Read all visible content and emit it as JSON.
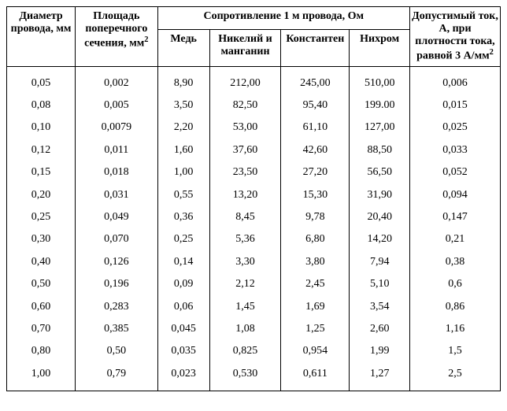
{
  "headers": {
    "col1": "Диаметр провода, мм",
    "col2_line1": "Площадь поперечного сечения, мм",
    "col2_sup": "2",
    "group": "Сопротивление 1 м провода, Ом",
    "sub1": "Медь",
    "sub2": "Никелий и манганин",
    "sub3": "Константен",
    "sub4": "Нихром",
    "col7_line1": "Допустимый ток, А, при плотности тока, равной 3 А/мм",
    "col7_sup": "2"
  },
  "rows": [
    {
      "d": "0,05",
      "s": "0,002",
      "cu": "8,90",
      "ni": "212,00",
      "ko": "245,00",
      "nh": "510,00",
      "i": "0,006"
    },
    {
      "d": "0,08",
      "s": "0,005",
      "cu": "3,50",
      "ni": "82,50",
      "ko": "95,40",
      "nh": "199.00",
      "i": "0,015"
    },
    {
      "d": "0,10",
      "s": "0,0079",
      "cu": "2,20",
      "ni": "53,00",
      "ko": "61,10",
      "nh": "127,00",
      "i": "0,025"
    },
    {
      "d": "0,12",
      "s": "0,011",
      "cu": "1,60",
      "ni": "37,60",
      "ko": "42,60",
      "nh": "88,50",
      "i": "0,033"
    },
    {
      "d": "0,15",
      "s": "0,018",
      "cu": "1,00",
      "ni": "23,50",
      "ko": "27,20",
      "nh": "56,50",
      "i": "0,052"
    },
    {
      "d": "0,20",
      "s": "0,031",
      "cu": "0,55",
      "ni": "13,20",
      "ko": "15,30",
      "nh": "31,90",
      "i": "0,094"
    },
    {
      "d": "0,25",
      "s": "0,049",
      "cu": "0,36",
      "ni": "8,45",
      "ko": "9,78",
      "nh": "20,40",
      "i": "0,147"
    },
    {
      "d": "0,30",
      "s": "0,070",
      "cu": "0,25",
      "ni": "5,36",
      "ko": "6,80",
      "nh": "14,20",
      "i": "0,21"
    },
    {
      "d": "0,40",
      "s": "0,126",
      "cu": "0,14",
      "ni": "3,30",
      "ko": "3,80",
      "nh": "7,94",
      "i": "0,38"
    },
    {
      "d": "0,50",
      "s": "0,196",
      "cu": "0,09",
      "ni": "2,12",
      "ko": "2,45",
      "nh": "5,10",
      "i": "0,6"
    },
    {
      "d": "0,60",
      "s": "0,283",
      "cu": "0,06",
      "ni": "1,45",
      "ko": "1,69",
      "nh": "3,54",
      "i": "0,86"
    },
    {
      "d": "0,70",
      "s": "0,385",
      "cu": "0,045",
      "ni": "1,08",
      "ko": "1,25",
      "nh": "2,60",
      "i": "1,16"
    },
    {
      "d": "0,80",
      "s": "0,50",
      "cu": "0,035",
      "ni": "0,825",
      "ko": "0,954",
      "nh": "1,99",
      "i": "1,5"
    },
    {
      "d": "1,00",
      "s": "0,79",
      "cu": "0,023",
      "ni": "0,530",
      "ko": "0,611",
      "nh": "1,27",
      "i": "2,5"
    }
  ],
  "col_widths": [
    "12.5%",
    "15%",
    "9.5%",
    "13%",
    "12.5%",
    "11%",
    "16.5%"
  ]
}
